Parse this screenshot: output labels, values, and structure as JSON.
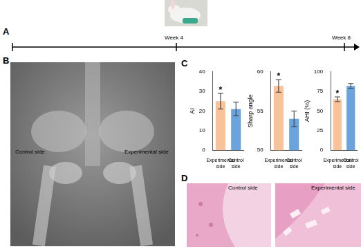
{
  "figure": {
    "panel_labels": [
      "A",
      "B",
      "C",
      "D"
    ],
    "timeline": {
      "labels": [
        "Week 4",
        "Week 8"
      ]
    },
    "xray": {
      "labels": [
        "Control side",
        "Experimental side"
      ]
    },
    "histology": {
      "labels": [
        "Control side",
        "Experimental side"
      ]
    }
  },
  "chart_data": [
    {
      "type": "bar",
      "ylabel": "AI",
      "categories": [
        "Experimental side",
        "Control side"
      ],
      "values": [
        25,
        21
      ],
      "errors": [
        4,
        3.5
      ],
      "colors": [
        "#f8c29b",
        "#6ba3dd"
      ],
      "ylim": [
        0,
        40
      ],
      "yticks": [
        0,
        10,
        20,
        30,
        40
      ],
      "grid": false,
      "annotations": [
        {
          "category": "Experimental side",
          "text": "*"
        }
      ]
    },
    {
      "type": "bar",
      "ylabel": "Sharp angle",
      "categories": [
        "Experimental side",
        "Control side"
      ],
      "values": [
        58.2,
        54
      ],
      "errors": [
        0.8,
        1
      ],
      "colors": [
        "#f8c29b",
        "#6ba3dd"
      ],
      "ylim": [
        50,
        60
      ],
      "yticks": [
        50,
        55,
        60
      ],
      "grid": false,
      "annotations": [
        {
          "category": "Experimental side",
          "text": "*"
        }
      ]
    },
    {
      "type": "bar",
      "ylabel": "AHI (%)",
      "categories": [
        "Experimental side",
        "Control side"
      ],
      "values": [
        65,
        82
      ],
      "errors": [
        3,
        3
      ],
      "colors": [
        "#f8c29b",
        "#6ba3dd"
      ],
      "ylim": [
        0,
        100
      ],
      "yticks": [
        0,
        25,
        50,
        75,
        100
      ],
      "grid": false,
      "annotations": [
        {
          "category": "Experimental side",
          "text": "*"
        }
      ]
    }
  ]
}
